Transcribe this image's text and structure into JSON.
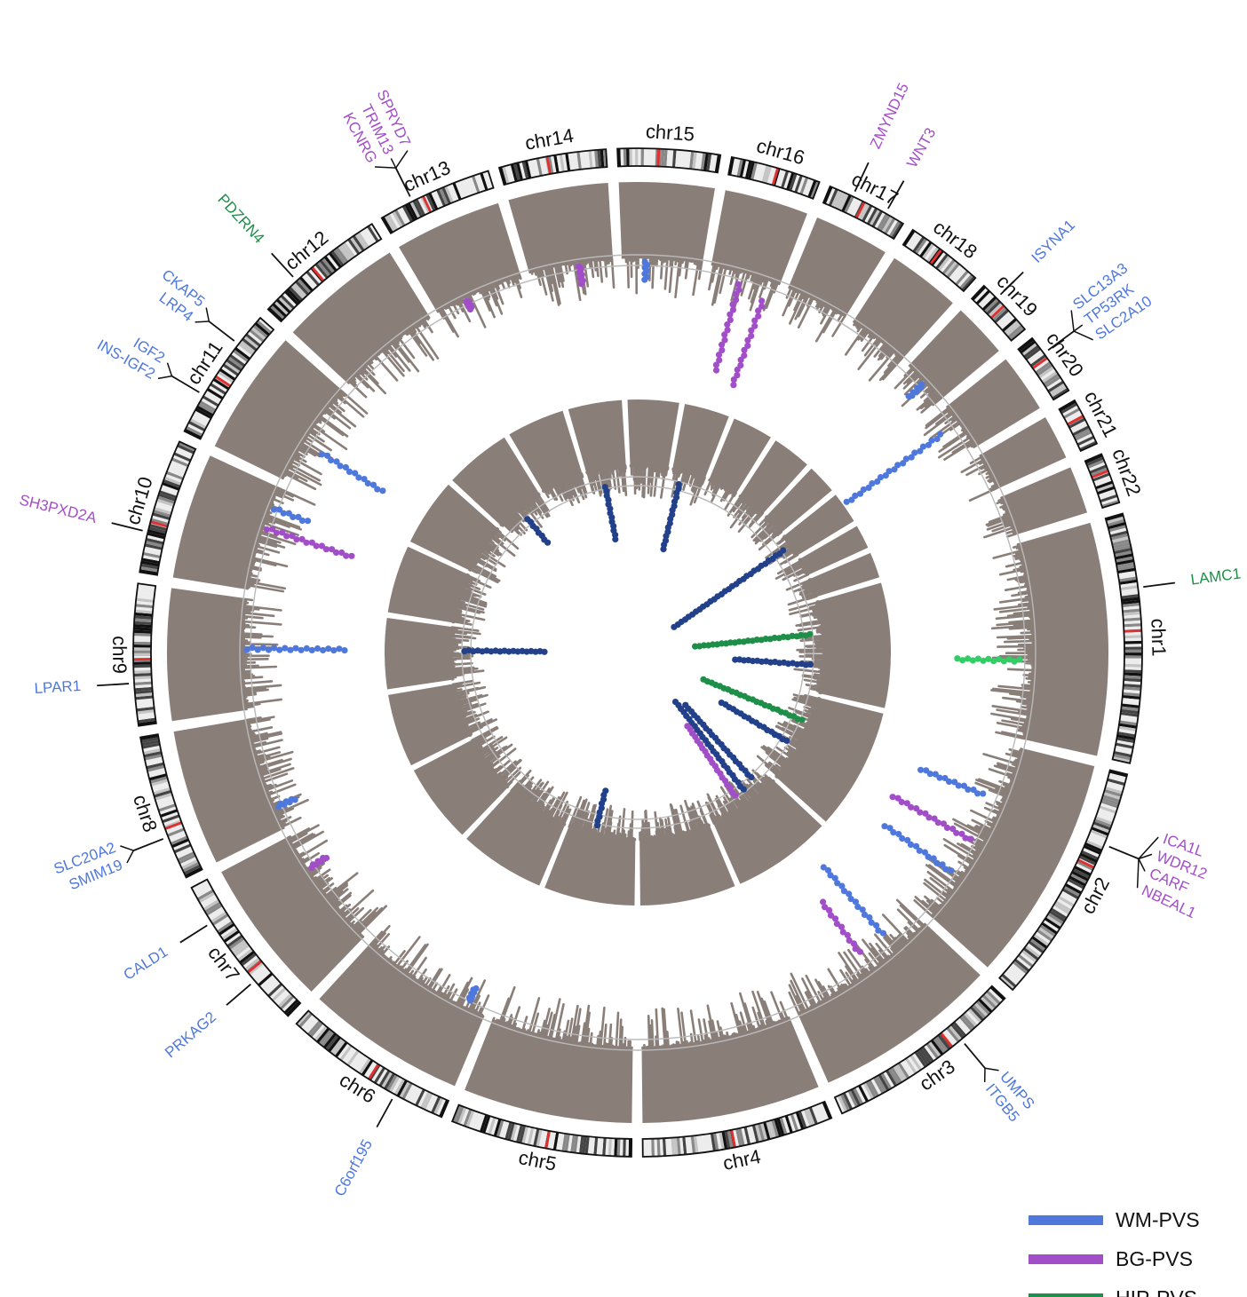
{
  "colors": {
    "manhattan": "#8a7e79",
    "wm": "#4f78dd",
    "bg": "#a34ec9",
    "hip": "#1d8f48",
    "hip_light": "#33cc66",
    "combined": "#23418a",
    "centromere": "#e03030"
  },
  "chromosomes": [
    {
      "name": "chr1",
      "size": 249
    },
    {
      "name": "chr2",
      "size": 243
    },
    {
      "name": "chr3",
      "size": 198
    },
    {
      "name": "chr4",
      "size": 191
    },
    {
      "name": "chr5",
      "size": 181
    },
    {
      "name": "chr6",
      "size": 171
    },
    {
      "name": "chr7",
      "size": 159
    },
    {
      "name": "chr8",
      "size": 146
    },
    {
      "name": "chr9",
      "size": 141
    },
    {
      "name": "chr10",
      "size": 135
    },
    {
      "name": "chr11",
      "size": 135
    },
    {
      "name": "chr12",
      "size": 133
    },
    {
      "name": "chr13",
      "size": 115
    },
    {
      "name": "chr14",
      "size": 107
    },
    {
      "name": "chr15",
      "size": 102
    },
    {
      "name": "chr16",
      "size": 90
    },
    {
      "name": "chr17",
      "size": 81
    },
    {
      "name": "chr18",
      "size": 78
    },
    {
      "name": "chr19",
      "size": 59
    },
    {
      "name": "chr20",
      "size": 63
    },
    {
      "name": "chr21",
      "size": 48
    },
    {
      "name": "chr22",
      "size": 51
    }
  ],
  "genes": [
    {
      "chr": "chr1",
      "labels": [
        "LAMC1"
      ],
      "type": "hip"
    },
    {
      "chr": "chr2",
      "labels": [
        "ICA1L",
        "WDR12",
        "CARF",
        "NBEAL1"
      ],
      "type": "bg"
    },
    {
      "chr": "chr3",
      "labels": [
        "UMPS",
        "ITGB5"
      ],
      "type": "wm"
    },
    {
      "chr": "chr6",
      "labels": [
        "C6orf195"
      ],
      "type": "wm"
    },
    {
      "chr": "chr7",
      "labels": [
        "PRKAG2"
      ],
      "type": "wm"
    },
    {
      "chr": "chr7",
      "labels": [
        "CALD1"
      ],
      "type": "wm"
    },
    {
      "chr": "chr8",
      "labels": [
        "SMIM19",
        "SLC20A2"
      ],
      "type": "wm"
    },
    {
      "chr": "chr9",
      "labels": [
        "LPAR1"
      ],
      "type": "wm"
    },
    {
      "chr": "chr10",
      "labels": [
        "SH3PXD2A"
      ],
      "type": "bg"
    },
    {
      "chr": "chr11",
      "labels": [
        "INS-IGF2",
        "IGF2"
      ],
      "type": "wm"
    },
    {
      "chr": "chr11",
      "labels": [
        "LRP4",
        "CKAP5"
      ],
      "type": "wm"
    },
    {
      "chr": "chr12",
      "labels": [
        "PDZRN4"
      ],
      "type": "hip"
    },
    {
      "chr": "chr13",
      "labels": [
        "KCNRG",
        "TRIM13",
        "SPRYD7"
      ],
      "type": "bg"
    },
    {
      "chr": "chr17",
      "labels": [
        "ZMYND15"
      ],
      "type": "bg"
    },
    {
      "chr": "chr17",
      "labels": [
        "WNT3"
      ],
      "type": "bg"
    },
    {
      "chr": "chr19",
      "labels": [
        "ISYNA1"
      ],
      "type": "wm"
    },
    {
      "chr": "chr20",
      "labels": [
        "SLC13A3",
        "TP53RK",
        "SLC2A10"
      ],
      "type": "wm"
    }
  ],
  "legend": [
    {
      "label": "WM-PVS",
      "color": "#4f78dd"
    },
    {
      "label": "BG-PVS",
      "color": "#a34ec9"
    },
    {
      "label": "HIP-PVS",
      "color": "#1d8f48"
    }
  ]
}
